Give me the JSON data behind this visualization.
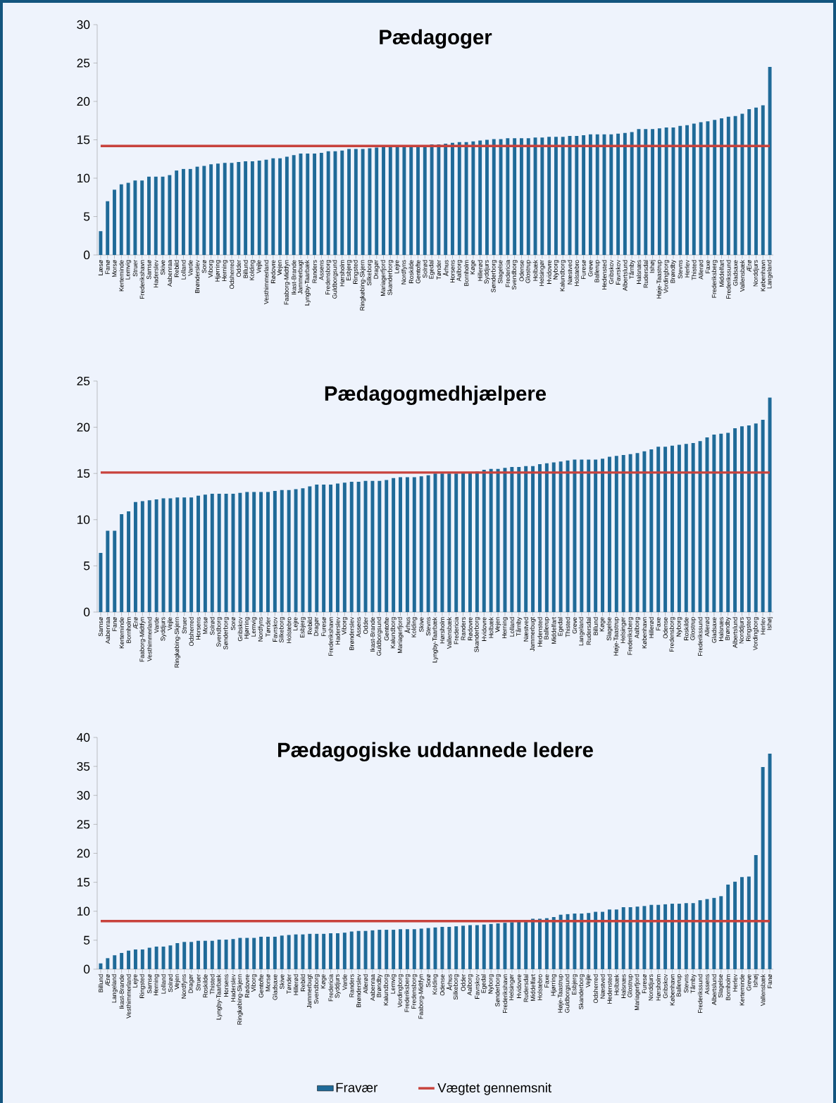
{
  "chart_data": [
    {
      "type": "bar",
      "title": "Pædagoger",
      "legend": false,
      "ylim": [
        0,
        30
      ],
      "yticks": [
        0,
        5,
        10,
        15,
        20,
        25,
        30
      ],
      "categories": [
        "Læsø",
        "Fanø",
        "Morsø",
        "Kerteminde",
        "Lemvig",
        "Struer",
        "Frederikshavn",
        "Samsø",
        "Haderslev",
        "Skive",
        "Aabenraa",
        "Rebild",
        "Lolland",
        "Varde",
        "Brønderslev",
        "Sorø",
        "Viborg",
        "Hjørring",
        "Herning",
        "Odsherred",
        "Odder",
        "Billund",
        "Kolding",
        "Vejle",
        "Vesthimmerland",
        "Rødovre",
        "Vejen",
        "Faaborg-Midtfyn",
        "Ikast-Brande",
        "Jammerbugt",
        "Lyngby-Taarbæk",
        "Randers",
        "Assens",
        "Fredensborg",
        "Guldborgsund",
        "Hørsholm",
        "Esbjerg",
        "Ringsted",
        "Ringkøbing-Skjern",
        "Silkeborg",
        "Dragør",
        "Mariagerfjord",
        "Skanderborg",
        "Lejre",
        "Nordfyns",
        "Roskilde",
        "Gentofte",
        "Solrød",
        "Egedal",
        "Tønder",
        "Århus",
        "Horsens",
        "Aalborg",
        "Bornholm",
        "Køge",
        "Hillerød",
        "Syddjurs",
        "Sønderborg",
        "Slagelse",
        "Fredericia",
        "Svendborg",
        "Odense",
        "Glostrup",
        "Holbæk",
        "Helsingør",
        "Hvidovre",
        "Nyborg",
        "Kalundborg",
        "Næstved",
        "Holstebro",
        "Furesø",
        "Greve",
        "Ballerup",
        "Hedensted",
        "Gribskov",
        "Favrskov",
        "Albertslund",
        "Tårnby",
        "Halsnæs",
        "Rudersdal",
        "Ishøj",
        "Høje-Taastrup",
        "Vordingborg",
        "Brøndby",
        "Stevns",
        "Herlev",
        "Thisted",
        "Allerød",
        "Faxe",
        "Frederiksberg",
        "Middelfart",
        "Frederikssund",
        "Gladsaxe",
        "Vallensbæk",
        "Ærø",
        "Norddjurs",
        "København",
        "Langeland"
      ],
      "series": [
        {
          "color": "#1f6a98",
          "values": [
            3.1,
            7.0,
            8.5,
            9.2,
            9.4,
            9.7,
            9.7,
            10.2,
            10.2,
            10.2,
            10.4,
            11.0,
            11.2,
            11.2,
            11.5,
            11.6,
            11.8,
            11.9,
            12.0,
            12.0,
            12.1,
            12.2,
            12.2,
            12.3,
            12.4,
            12.6,
            12.6,
            12.8,
            13.0,
            13.2,
            13.2,
            13.2,
            13.3,
            13.5,
            13.5,
            13.6,
            13.8,
            13.8,
            13.8,
            13.9,
            14.0,
            14.1,
            14.1,
            14.1,
            14.2,
            14.2,
            14.3,
            14.3,
            14.4,
            14.4,
            14.5,
            14.6,
            14.7,
            14.7,
            14.8,
            14.9,
            15.0,
            15.1,
            15.1,
            15.2,
            15.2,
            15.2,
            15.2,
            15.3,
            15.3,
            15.4,
            15.4,
            15.4,
            15.5,
            15.5,
            15.6,
            15.7,
            15.7,
            15.7,
            15.7,
            15.8,
            15.9,
            16.0,
            16.4,
            16.4,
            16.4,
            16.5,
            16.6,
            16.6,
            16.8,
            16.9,
            17.1,
            17.3,
            17.4,
            17.6,
            17.8,
            18.0,
            18.1,
            18.4,
            19.0,
            19.2,
            19.5,
            24.5
          ]
        },
        {
          "type": "line",
          "color": "#c8423c",
          "values": [
            14.2,
            14.2,
            14.2,
            14.2,
            14.2,
            14.2,
            14.2,
            14.2,
            14.2,
            14.2,
            14.2,
            14.2,
            14.2,
            14.2,
            14.2,
            14.2,
            14.2,
            14.2,
            14.2,
            14.2,
            14.2,
            14.2,
            14.2,
            14.2,
            14.2,
            14.2,
            14.2,
            14.2,
            14.2,
            14.2,
            14.2,
            14.2,
            14.2,
            14.2,
            14.2,
            14.2,
            14.2,
            14.2,
            14.2,
            14.2,
            14.2,
            14.2,
            14.2,
            14.2,
            14.2,
            14.2,
            14.2,
            14.2,
            14.2,
            14.2,
            14.2,
            14.2,
            14.2,
            14.2,
            14.2,
            14.2,
            14.2,
            14.2,
            14.2,
            14.2,
            14.2,
            14.2,
            14.2,
            14.2,
            14.2,
            14.2,
            14.2,
            14.2,
            14.2,
            14.2,
            14.2,
            14.2,
            14.2,
            14.2,
            14.2,
            14.2,
            14.2,
            14.2,
            14.2,
            14.2,
            14.2,
            14.2,
            14.2,
            14.2,
            14.2,
            14.2,
            14.2,
            14.2,
            14.2,
            14.2,
            14.2,
            14.2,
            14.2,
            14.2,
            14.2,
            14.2,
            14.2,
            14.2
          ]
        }
      ]
    },
    {
      "type": "bar",
      "title": "Pædagogmedhjælpere",
      "legend": false,
      "ylim": [
        0,
        25
      ],
      "yticks": [
        0,
        5,
        10,
        15,
        20,
        25
      ],
      "categories": [
        "Samsø",
        "Aabenraa",
        "Fanø",
        "Kerteminde",
        "Bornholm",
        "Ærø",
        "Faaborg-Midtfyn",
        "Vesthimmerland",
        "Varde",
        "Syddjurs",
        "Vejle",
        "Ringkøbing-Skjern",
        "Struer",
        "Odsherred",
        "Horsens",
        "Morsø",
        "Solrød",
        "Svendborg",
        "Sønderborg",
        "Sorø",
        "Gribskov",
        "Hjørring",
        "Lemvig",
        "Nordfyns",
        "Tønder",
        "Favrskov",
        "Silkeborg",
        "Holstebro",
        "Lejre",
        "Esbjerg",
        "Rebild",
        "Dragør",
        "Furesø",
        "Frederikshavn",
        "Haderslev",
        "Viborg",
        "Brønderslev",
        "Assens",
        "Odder",
        "Ikast-Brande",
        "Guldborgsund",
        "Gentofte",
        "Kalundborg",
        "Mariagerfjord",
        "Århus",
        "Kolding",
        "Skive",
        "Stevns",
        "Lyngby-Taarbæk",
        "Hørsholm",
        "Vallensbæk",
        "Fredericia",
        "Randers",
        "Rødovre",
        "Skanderborg",
        "Hvidovre",
        "Holbæk",
        "Vejen",
        "Herning",
        "Lolland",
        "Tårnby",
        "Næstved",
        "Jammerbugt",
        "Hedensted",
        "Ballerup",
        "Middelfart",
        "Egedal",
        "Thisted",
        "Greve",
        "Langeland",
        "Rudersdal",
        "Billund",
        "Køge",
        "Slagelse",
        "Høje-Taastrup",
        "Helsingør",
        "Frederiksberg",
        "Aalborg",
        "København",
        "Hillerød",
        "Faxe",
        "Odense",
        "Fredensborg",
        "Nyborg",
        "Roskilde",
        "Glostrup",
        "Frederikssund",
        "Allerød",
        "Gladsaxe",
        "Halsnæs",
        "Brøndby",
        "Albertslund",
        "Norddjurs",
        "Ringsted",
        "Vordingborg",
        "Herlev",
        "Ishøj"
      ],
      "series": [
        {
          "color": "#1f6a98",
          "values": [
            6.4,
            8.8,
            8.8,
            10.6,
            10.9,
            11.9,
            12.0,
            12.1,
            12.2,
            12.3,
            12.3,
            12.4,
            12.4,
            12.4,
            12.6,
            12.7,
            12.8,
            12.8,
            12.8,
            12.8,
            12.9,
            13.0,
            13.0,
            13.0,
            13.0,
            13.1,
            13.2,
            13.2,
            13.3,
            13.4,
            13.6,
            13.8,
            13.8,
            13.8,
            13.9,
            14.0,
            14.1,
            14.1,
            14.2,
            14.2,
            14.2,
            14.3,
            14.5,
            14.6,
            14.6,
            14.6,
            14.7,
            14.8,
            15.0,
            15.0,
            15.0,
            15.0,
            15.1,
            15.1,
            15.2,
            15.4,
            15.5,
            15.5,
            15.6,
            15.7,
            15.7,
            15.8,
            15.8,
            16.0,
            16.1,
            16.2,
            16.3,
            16.4,
            16.5,
            16.5,
            16.5,
            16.5,
            16.6,
            16.8,
            16.9,
            17.0,
            17.1,
            17.2,
            17.4,
            17.6,
            17.9,
            17.9,
            18.0,
            18.1,
            18.2,
            18.3,
            18.5,
            18.9,
            19.2,
            19.3,
            19.4,
            19.9,
            20.1,
            20.2,
            20.4,
            20.8,
            23.2
          ]
        },
        {
          "type": "line",
          "color": "#c8423c",
          "values": [
            15.1,
            15.1,
            15.1,
            15.1,
            15.1,
            15.1,
            15.1,
            15.1,
            15.1,
            15.1,
            15.1,
            15.1,
            15.1,
            15.1,
            15.1,
            15.1,
            15.1,
            15.1,
            15.1,
            15.1,
            15.1,
            15.1,
            15.1,
            15.1,
            15.1,
            15.1,
            15.1,
            15.1,
            15.1,
            15.1,
            15.1,
            15.1,
            15.1,
            15.1,
            15.1,
            15.1,
            15.1,
            15.1,
            15.1,
            15.1,
            15.1,
            15.1,
            15.1,
            15.1,
            15.1,
            15.1,
            15.1,
            15.1,
            15.1,
            15.1,
            15.1,
            15.1,
            15.1,
            15.1,
            15.1,
            15.1,
            15.1,
            15.1,
            15.1,
            15.1,
            15.1,
            15.1,
            15.1,
            15.1,
            15.1,
            15.1,
            15.1,
            15.1,
            15.1,
            15.1,
            15.1,
            15.1,
            15.1,
            15.1,
            15.1,
            15.1,
            15.1,
            15.1,
            15.1,
            15.1,
            15.1,
            15.1,
            15.1,
            15.1,
            15.1,
            15.1,
            15.1,
            15.1,
            15.1,
            15.1,
            15.1,
            15.1,
            15.1,
            15.1,
            15.1,
            15.1,
            15.1
          ]
        }
      ]
    },
    {
      "type": "bar",
      "title": "Pædagogiske uddannede ledere",
      "legend": "bottom",
      "ylim": [
        0,
        40
      ],
      "yticks": [
        0,
        5,
        10,
        15,
        20,
        25,
        30,
        35,
        40
      ],
      "categories": [
        "Billund",
        "Ærø",
        "Langeland",
        "Ikast-Brande",
        "Vesthimmerland",
        "Lejre",
        "Ringsted",
        "Samsø",
        "Herning",
        "Lolland",
        "Solrød",
        "Vejen",
        "Nordfyns",
        "Dragør",
        "Struer",
        "Roskilde",
        "Thisted",
        "Lyngby-Taarbæk",
        "Horsens",
        "Haderslev",
        "Ringkøbing-Skjern",
        "Rødovre",
        "Viborg",
        "Gentofte",
        "Morsø",
        "Gladsaxe",
        "Skive",
        "Tønder",
        "Hillerød",
        "Rebild",
        "Jammerbugt",
        "Svendborg",
        "Køge",
        "Fredericia",
        "Syddjurs",
        "Varde",
        "Randers",
        "Brønderslev",
        "Allerød",
        "Aabenraa",
        "Brøndby",
        "Kalundborg",
        "Lemvig",
        "Vordingborg",
        "Frederiksberg",
        "Fredensborg",
        "Faaborg-Midtfyn",
        "Sorø",
        "Kolding",
        "Odense",
        "Århus",
        "Silkeborg",
        "Odder",
        "Aalborg",
        "Favrskov",
        "Egedal",
        "Nyborg",
        "Sønderborg",
        "Frederikshavn",
        "Helsingør",
        "Hvidovre",
        "Rudersdal",
        "Middelfart",
        "Holstebro",
        "Faxe",
        "Hjørring",
        "Høje-Taastrup",
        "Guldborgsund",
        "Esbjerg",
        "Skanderborg",
        "Vejle",
        "Odsherred",
        "Næstved",
        "Hedensted",
        "Holbæk",
        "Halsnæs",
        "Glostrup",
        "Mariagerfjord",
        "Furesø",
        "Norddjurs",
        "Hørsholm",
        "Gribskov",
        "København",
        "Ballerup",
        "Stevns",
        "Tårnby",
        "Frederikssund",
        "Assens",
        "Albertslund",
        "Slagelse",
        "Bornholm",
        "Herlev",
        "Kerteminde",
        "Greve",
        "Ishøj",
        "Vallensbæk",
        "Fanø"
      ],
      "series": [
        {
          "name": "Fravær",
          "color": "#1f6a98",
          "values": [
            1.0,
            1.9,
            2.4,
            2.8,
            3.2,
            3.4,
            3.4,
            3.7,
            3.9,
            3.9,
            4.1,
            4.5,
            4.7,
            4.7,
            4.9,
            4.9,
            4.9,
            5.1,
            5.1,
            5.2,
            5.4,
            5.4,
            5.4,
            5.6,
            5.6,
            5.6,
            5.8,
            5.9,
            6.0,
            6.0,
            6.1,
            6.1,
            6.1,
            6.2,
            6.2,
            6.3,
            6.5,
            6.6,
            6.6,
            6.7,
            6.8,
            6.8,
            6.8,
            6.9,
            6.9,
            6.9,
            7.0,
            7.1,
            7.2,
            7.3,
            7.3,
            7.4,
            7.5,
            7.6,
            7.6,
            7.7,
            7.8,
            7.9,
            8.0,
            8.1,
            8.2,
            8.4,
            8.7,
            8.7,
            8.8,
            9.0,
            9.4,
            9.5,
            9.6,
            9.6,
            9.7,
            9.9,
            9.9,
            10.3,
            10.3,
            10.7,
            10.7,
            10.8,
            10.9,
            11.1,
            11.1,
            11.2,
            11.3,
            11.3,
            11.4,
            11.4,
            11.9,
            12.1,
            12.3,
            12.6,
            14.6,
            15.1,
            15.9,
            16.0,
            19.7,
            34.9,
            37.2
          ]
        },
        {
          "type": "line",
          "name": "Vægtet gennemsnit",
          "color": "#c8423c",
          "values": [
            8.3,
            8.3,
            8.3,
            8.3,
            8.3,
            8.3,
            8.3,
            8.3,
            8.3,
            8.3,
            8.3,
            8.3,
            8.3,
            8.3,
            8.3,
            8.3,
            8.3,
            8.3,
            8.3,
            8.3,
            8.3,
            8.3,
            8.3,
            8.3,
            8.3,
            8.3,
            8.3,
            8.3,
            8.3,
            8.3,
            8.3,
            8.3,
            8.3,
            8.3,
            8.3,
            8.3,
            8.3,
            8.3,
            8.3,
            8.3,
            8.3,
            8.3,
            8.3,
            8.3,
            8.3,
            8.3,
            8.3,
            8.3,
            8.3,
            8.3,
            8.3,
            8.3,
            8.3,
            8.3,
            8.3,
            8.3,
            8.3,
            8.3,
            8.3,
            8.3,
            8.3,
            8.3,
            8.3,
            8.3,
            8.3,
            8.3,
            8.3,
            8.3,
            8.3,
            8.3,
            8.3,
            8.3,
            8.3,
            8.3,
            8.3,
            8.3,
            8.3,
            8.3,
            8.3,
            8.3,
            8.3,
            8.3,
            8.3,
            8.3,
            8.3,
            8.3,
            8.3,
            8.3,
            8.3,
            8.3,
            8.3,
            8.3,
            8.3,
            8.3,
            8.3,
            8.3,
            8.3
          ]
        }
      ]
    }
  ]
}
